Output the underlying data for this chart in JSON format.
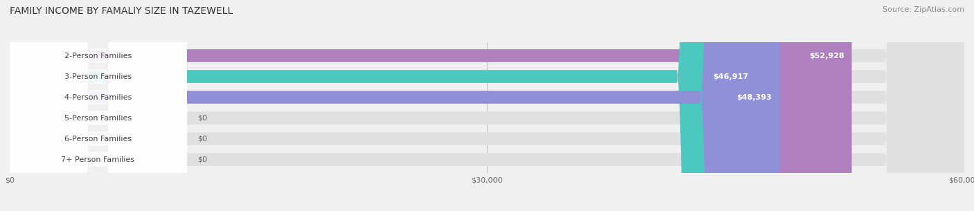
{
  "title": "FAMILY INCOME BY FAMALIY SIZE IN TAZEWELL",
  "source": "Source: ZipAtlas.com",
  "categories": [
    "2-Person Families",
    "3-Person Families",
    "4-Person Families",
    "5-Person Families",
    "6-Person Families",
    "7+ Person Families"
  ],
  "values": [
    52928,
    46917,
    48393,
    0,
    0,
    0
  ],
  "bar_colors": [
    "#b07fc0",
    "#4dc8c0",
    "#9090d8",
    "#f4a0b0",
    "#f5c89a",
    "#f4a0a8"
  ],
  "xmax": 60000,
  "xticks": [
    0,
    30000,
    60000
  ],
  "xtick_labels": [
    "$0",
    "$30,000",
    "$60,000"
  ],
  "background_color": "#f0f0f0",
  "bar_background_color": "#e0e0e0",
  "value_label_color": "#ffffff",
  "zero_label_color": "#666666",
  "title_fontsize": 10,
  "source_fontsize": 8,
  "bar_height": 0.62,
  "label_fontsize": 8
}
